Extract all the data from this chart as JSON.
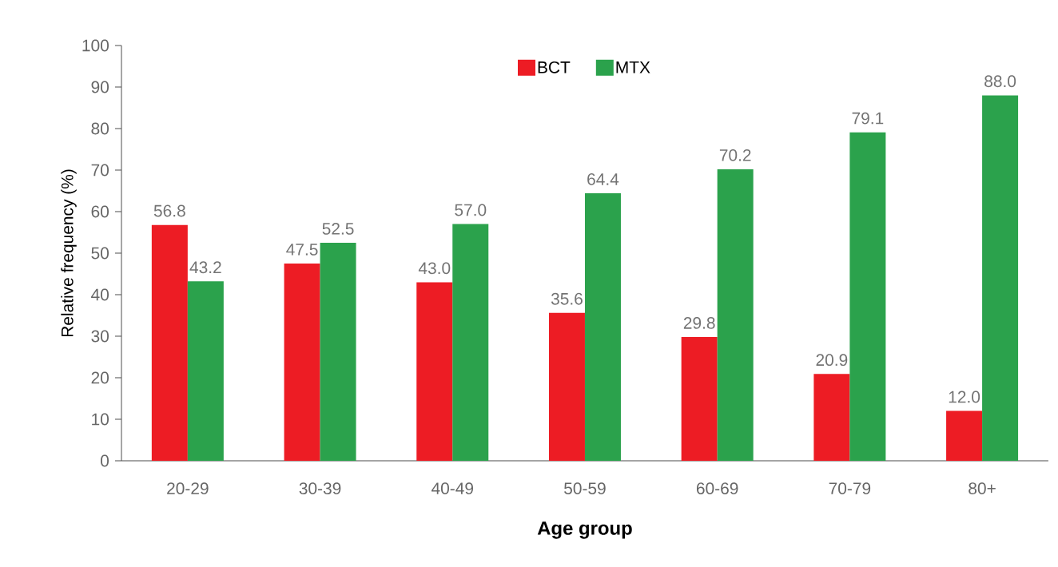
{
  "chart_data": {
    "type": "bar",
    "xlabel": "Age group",
    "ylabel": "Relative frequency (%)",
    "categories": [
      "20-29",
      "30-39",
      "40-49",
      "50-59",
      "60-69",
      "70-79",
      "80+"
    ],
    "series": [
      {
        "name": "BCT",
        "color": "#ed1c24",
        "values": [
          56.8,
          47.5,
          43.0,
          35.6,
          29.8,
          20.9,
          12.0
        ],
        "value_labels": [
          "56.8",
          "47.5",
          "43.0",
          "35.6",
          "29.8",
          "20.9",
          "12.0"
        ]
      },
      {
        "name": "MTX",
        "color": "#2ba24c",
        "values": [
          43.2,
          52.5,
          57.0,
          64.4,
          70.2,
          79.1,
          88.0
        ],
        "value_labels": [
          "43.2",
          "52.5",
          "57.0",
          "64.4",
          "70.2",
          "79.1",
          "88.0"
        ]
      }
    ],
    "ylim": [
      0,
      100
    ],
    "yticks": [
      0,
      10,
      20,
      30,
      40,
      50,
      60,
      70,
      80,
      90,
      100
    ],
    "legend": "top",
    "grid": false
  }
}
